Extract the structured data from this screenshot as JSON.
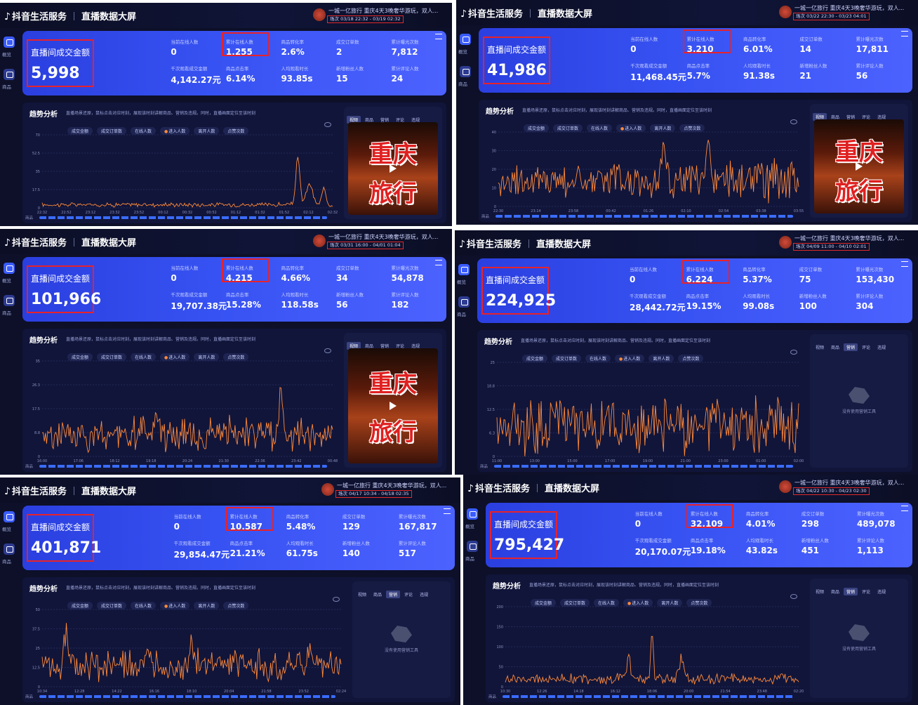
{
  "app": {
    "brand": "抖音生活服务",
    "page_title": "直播数据大屏",
    "gmv_label": "直播间成交金额",
    "sidebar": [
      "概览",
      "商品"
    ],
    "trend_title": "趋势分析",
    "trend_desc": "直播场景还原，鼠标点击对应时刻，展现该时刻讲解商品、营销及违规。同时，直播画面定位至该时刻",
    "chips": [
      "成交金额",
      "成交订单数",
      "在线人数",
      "进入人数",
      "离开人数",
      "点赞次数"
    ],
    "active_chip": "进入人数",
    "media_tabs": [
      "视频",
      "商品",
      "营销",
      "评论",
      "违规"
    ],
    "poster_text_top": "重庆",
    "poster_text_bottom": "旅行",
    "empty_text": "没有使用营销工具",
    "room_title": "一城一亿旅行 重庆4天3晚奢华游玩，双人...",
    "row_label": "商品",
    "labels": {
      "online": "当前在线人数",
      "cum_online": "累计在线人数",
      "conv": "商品转化率",
      "orders": "成交订单数",
      "exposure": "累计曝光次数",
      "k_gmv": "千次观看成交金额",
      "ctr": "商品点击率",
      "avg_watch": "人均观看时长",
      "new_fans": "新增粉丝人数",
      "comments": "累计评论人数"
    },
    "accent": "#3752f2",
    "line_color": "#ff8a3a",
    "highlight_color": "#e8222a"
  },
  "panels": [
    {
      "session": "场次 03/18 22:32 - 03/19 02:32",
      "gmv": "5,998",
      "metrics": {
        "online": "0",
        "cum_online": "1,255",
        "conv": "2.6%",
        "orders": "2",
        "exposure": "7,812",
        "k_gmv": "4,142.27元",
        "ctr": "6.14%",
        "avg_watch": "93.85s",
        "new_fans": "15",
        "comments": "24"
      },
      "yticks": [
        "70",
        "52.5",
        "35",
        "17.5",
        "0"
      ],
      "xticks": [
        "22:32",
        "22:52",
        "23:12",
        "23:32",
        "23:52",
        "00:12",
        "00:32",
        "00:52",
        "01:12",
        "01:32",
        "01:52",
        "02:12",
        "02:32"
      ],
      "media": "poster",
      "active_tab": "视频"
    },
    {
      "session": "场次 03/22 22:30 - 03/23 04:01",
      "gmv": "41,986",
      "metrics": {
        "online": "0",
        "cum_online": "3,210",
        "conv": "6.01%",
        "orders": "14",
        "exposure": "17,811",
        "k_gmv": "11,468.45元",
        "ctr": "5.7%",
        "avg_watch": "91.38s",
        "new_fans": "21",
        "comments": "56"
      },
      "yticks": [
        "40",
        "30",
        "20",
        "10",
        "0"
      ],
      "xticks": [
        "22:30",
        "23:14",
        "23:58",
        "00:42",
        "01:26",
        "02:10",
        "02:54",
        "03:38",
        "03:55"
      ],
      "media": "poster",
      "active_tab": "视频"
    },
    {
      "session": "场次 03/31 16:00 - 04/01 01:04",
      "gmv": "101,966",
      "metrics": {
        "online": "0",
        "cum_online": "4,215",
        "conv": "4.66%",
        "orders": "34",
        "exposure": "54,878",
        "k_gmv": "19,707.38元",
        "ctr": "15.28%",
        "avg_watch": "118.58s",
        "new_fans": "56",
        "comments": "182"
      },
      "yticks": [
        "35",
        "26.3",
        "17.5",
        "8.8",
        "0"
      ],
      "xticks": [
        "16:00",
        "17:06",
        "18:12",
        "19:18",
        "20:24",
        "21:30",
        "22:36",
        "23:42",
        "00:48"
      ],
      "media": "poster",
      "active_tab": "视频"
    },
    {
      "session": "场次 04/09 11:00 - 04/10 02:01",
      "gmv": "224,925",
      "metrics": {
        "online": "0",
        "cum_online": "6,224",
        "conv": "5.37%",
        "orders": "75",
        "exposure": "153,430",
        "k_gmv": "28,442.72元",
        "ctr": "19.15%",
        "avg_watch": "99.08s",
        "new_fans": "100",
        "comments": "304"
      },
      "yticks": [
        "25",
        "18.8",
        "12.5",
        "6.3",
        "0"
      ],
      "xticks": [
        "11:00",
        "13:00",
        "15:00",
        "17:00",
        "19:00",
        "21:00",
        "23:00",
        "01:00",
        "02:00"
      ],
      "media": "empty",
      "active_tab": "营销"
    },
    {
      "session": "场次 04/17 10:34 - 04/18 02:35",
      "gmv": "401,871",
      "metrics": {
        "online": "0",
        "cum_online": "10,587",
        "conv": "5.48%",
        "orders": "129",
        "exposure": "167,817",
        "k_gmv": "29,854.47元",
        "ctr": "21.21%",
        "avg_watch": "61.75s",
        "new_fans": "140",
        "comments": "517"
      },
      "yticks": [
        "50",
        "37.5",
        "25",
        "12.5",
        "0"
      ],
      "xticks": [
        "10:34",
        "12:28",
        "14:22",
        "16:16",
        "18:10",
        "20:04",
        "21:58",
        "23:52",
        "02:24"
      ],
      "media": "empty",
      "active_tab": "营销"
    },
    {
      "session": "场次 04/22 10:30 - 04/23 02:30",
      "gmv": "795,427",
      "metrics": {
        "online": "0",
        "cum_online": "32,109",
        "conv": "4.01%",
        "orders": "298",
        "exposure": "489,078",
        "k_gmv": "20,170.07元",
        "ctr": "19.18%",
        "avg_watch": "43.82s",
        "new_fans": "451",
        "comments": "1,113"
      },
      "yticks": [
        "200",
        "150",
        "100",
        "50",
        "0"
      ],
      "xticks": [
        "10:30",
        "12:26",
        "14:18",
        "16:12",
        "18:06",
        "20:00",
        "21:54",
        "23:48",
        "02:20"
      ],
      "media": "empty",
      "active_tab": "营销"
    }
  ]
}
